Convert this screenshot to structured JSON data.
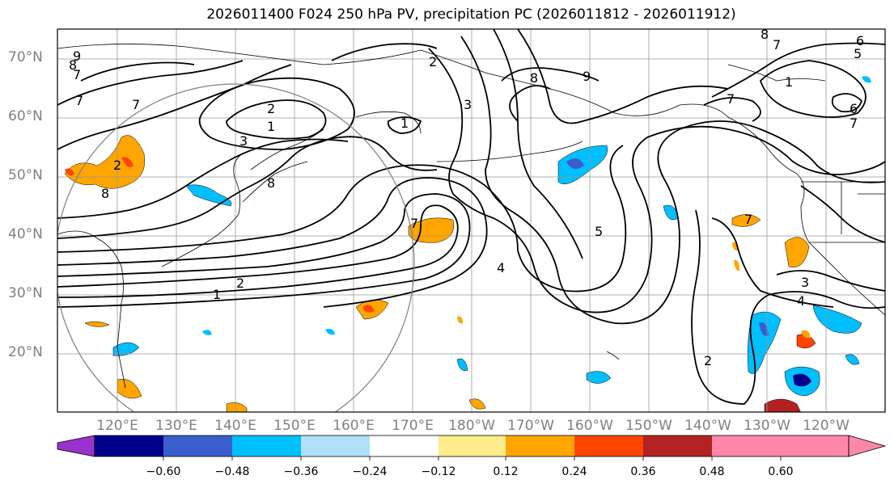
{
  "title": "2026011400 F024 250 hPa PV, precipitation PC (2026011812 - 2026011912)",
  "map": {
    "lat_labels": [
      "70°N",
      "60°N",
      "50°N",
      "40°N",
      "30°N",
      "20°N"
    ],
    "lon_labels": [
      "120°E",
      "130°E",
      "140°E",
      "150°E",
      "160°E",
      "170°E",
      "180°W",
      "170°W",
      "160°W",
      "150°W",
      "140°W",
      "130°W",
      "120°W"
    ],
    "contour_labels": [
      "1",
      "2",
      "3",
      "4",
      "5",
      "6",
      "7",
      "8",
      "9"
    ]
  },
  "colorbar": {
    "colors": [
      "#9932cc",
      "#00008b",
      "#3a5fcd",
      "#00bfff",
      "#b0e0f8",
      "#ffffff",
      "#ffec8b",
      "#ffa500",
      "#ff4500",
      "#b22222",
      "#ff88aa"
    ],
    "tick_labels": [
      "−0.60",
      "−0.48",
      "−0.36",
      "−0.24",
      "−0.12",
      "0.12",
      "0.24",
      "0.36",
      "0.48",
      "0.60"
    ]
  },
  "colors": {
    "contour": "#000000",
    "grid": "#999999",
    "coast": "#000000",
    "circle": "#808080"
  }
}
